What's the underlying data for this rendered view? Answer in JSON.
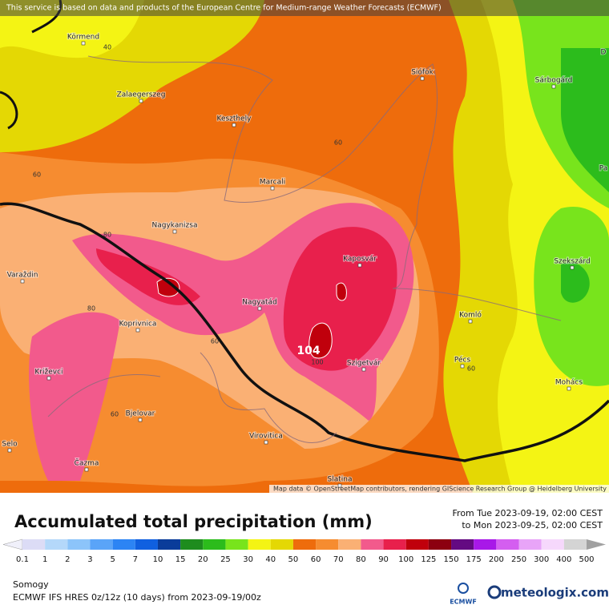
{
  "banner": "This service is based on data and products of the European Centre for Medium-range Weather Forecasts (ECMWF)",
  "cities": [
    "Körmend",
    "Zalaegerszeg",
    "Keszthely",
    "Siófok",
    "Sárbogárd",
    "Marcali",
    "Nagykanizsa",
    "Kaposvár",
    "Szekszárd",
    "Varaždin",
    "Nagyatád",
    "Koprivnica",
    "Komló",
    "Pécs",
    "Szigetvár",
    "Križevci",
    "Mohács",
    "Bjelovar",
    "Virovitica",
    "Selo",
    "Čazma",
    "Slatina",
    "D",
    "Pa"
  ],
  "contour_labels": [
    "40",
    "60",
    "60",
    "80",
    "80",
    "60",
    "100",
    "60",
    "60"
  ],
  "max_label": "104",
  "attribution": "Map data © OpenStreetMap contributors, rendering GIScience Research Group @ Heidelberg University",
  "title": "Accumulated total precipitation (mm)",
  "period": [
    "From Tue 2023-09-19, 02:00 CEST",
    "to Mon 2023-09-25, 02:00 CEST"
  ],
  "legend": {
    "labels": [
      "0.1",
      "1",
      "2",
      "3",
      "5",
      "7",
      "10",
      "15",
      "20",
      "25",
      "30",
      "40",
      "50",
      "60",
      "70",
      "80",
      "90",
      "100",
      "125",
      "150",
      "175",
      "200",
      "250",
      "300",
      "400",
      "500"
    ],
    "colors": [
      "#dcdcf6",
      "#b4d8fa",
      "#8cc4fa",
      "#5aa4f8",
      "#2c84f4",
      "#1060e0",
      "#0a3c9a",
      "#1e8c1e",
      "#2cbc1c",
      "#78e41c",
      "#f4f414",
      "#e4d804",
      "#ee6c0c",
      "#f68c30",
      "#fab074",
      "#f25a8c",
      "#e8204c",
      "#c0000c",
      "#8c0010",
      "#640a82",
      "#a818e8",
      "#d45ef0",
      "#e8a4f8",
      "#f6d8fc",
      "#d4d4d4"
    ],
    "under_color": "#f0f0fa",
    "over_color": "#a0a0a0"
  },
  "region": "Somogy",
  "model": "ECMWF IFS HRES 0z/12z (10 days) from  2023-09-19/00z",
  "logo_ecmwf": "ECMWF",
  "logo_brand": "meteologix.com"
}
